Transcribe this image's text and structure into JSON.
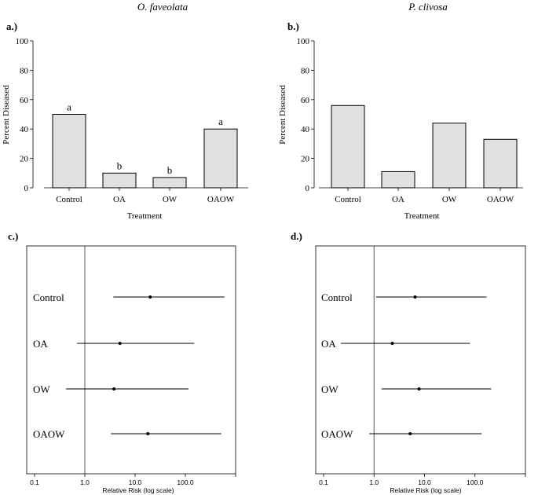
{
  "chart_data": [
    {
      "id": "a",
      "type": "bar",
      "panel_label": "a.)",
      "title": "O. faveolata",
      "xlabel": "Treatment",
      "ylabel": "Percent Diseased",
      "categories": [
        "Control",
        "OA",
        "OW",
        "OAOW"
      ],
      "values": [
        50,
        10,
        7,
        40
      ],
      "annotations": [
        "a",
        "b",
        "b",
        "a"
      ],
      "ylim": [
        0,
        100
      ],
      "yticks": [
        "0",
        "20",
        "40",
        "60",
        "80",
        "100"
      ],
      "bar_color": "#e0e0e0"
    },
    {
      "id": "b",
      "type": "bar",
      "panel_label": "b.)",
      "title": "P. clivosa",
      "xlabel": "Treatment",
      "ylabel": "Percent Diseased",
      "categories": [
        "Control",
        "OA",
        "OW",
        "OAOW"
      ],
      "values": [
        56,
        11,
        44,
        33
      ],
      "annotations": [
        "",
        "",
        "",
        ""
      ],
      "ylim": [
        0,
        100
      ],
      "yticks": [
        "0",
        "20",
        "40",
        "60",
        "80",
        "100"
      ],
      "bar_color": "#e0e0e0"
    },
    {
      "id": "c",
      "type": "forest",
      "panel_label": "c.)",
      "xlabel": "Relative Risk (log scale)",
      "xscale": "log",
      "xlim": [
        0.1,
        1000
      ],
      "xticks": [
        "0.1",
        "1.0",
        "10.0",
        "100.0"
      ],
      "reference_line": 1,
      "categories": [
        "Control",
        "OA",
        "OW",
        "OAOW"
      ],
      "estimates": [
        20,
        5,
        3.8,
        18
      ],
      "lower": [
        3.7,
        0.7,
        0.42,
        3.3
      ],
      "upper": [
        600,
        150,
        115,
        520
      ]
    },
    {
      "id": "d",
      "type": "forest",
      "panel_label": "d.)",
      "xlabel": "Relative Risk (log scale)",
      "xscale": "log",
      "xlim": [
        0.1,
        1000
      ],
      "xticks": [
        "0.1",
        "1.0",
        "10.0",
        "100.0"
      ],
      "reference_line": 1,
      "categories": [
        "Control",
        "OA",
        "OW",
        "OAOW"
      ],
      "estimates": [
        6.5,
        2.3,
        7.8,
        5.2
      ],
      "lower": [
        1.1,
        0.22,
        1.4,
        0.8
      ],
      "upper": [
        170,
        80,
        210,
        135
      ]
    }
  ]
}
